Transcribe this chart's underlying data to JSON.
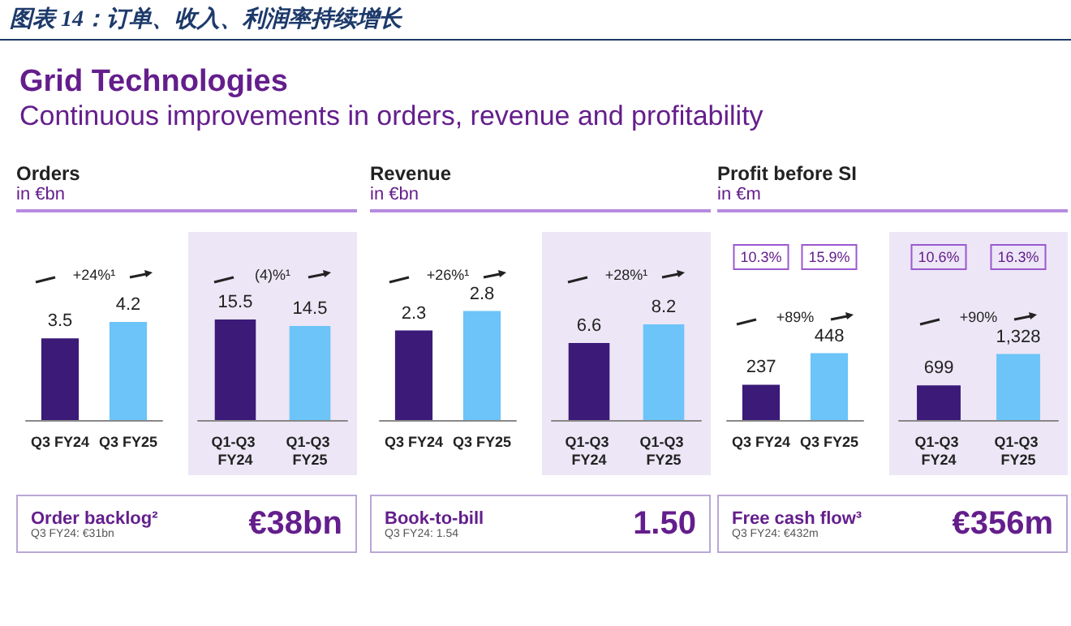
{
  "chart_data": [
    {
      "type": "other",
      "title": "Grid Technologies",
      "subtitle": "Continuous improvements in orders, revenue and profitability",
      "annotations": [
        "图表 14：订单、收入、利润率持续增长"
      ]
    },
    {
      "type": "bar",
      "title": "Orders",
      "subtitle": "in €bn",
      "categories": [
        "Q3 FY24",
        "Q3 FY25"
      ],
      "values": [
        3.5,
        4.2
      ],
      "colors": [
        "#3b1a78",
        "#6cc4f8"
      ],
      "data_labels": true,
      "annotations": [
        "+24%¹"
      ]
    },
    {
      "type": "bar",
      "categories": [
        "Q1-Q3 FY24",
        "Q1-Q3 FY25"
      ],
      "values": [
        15.5,
        14.5
      ],
      "colors": [
        "#3b1a78",
        "#6cc4f8"
      ],
      "data_labels": true,
      "annotations": [
        "(4)%¹"
      ]
    },
    {
      "type": "other",
      "title": "Order backlog²",
      "subtitle": "Q3 FY24: €31bn",
      "annotations": [
        "€38bn"
      ]
    },
    {
      "type": "bar",
      "title": "Revenue",
      "subtitle": "in €bn",
      "categories": [
        "Q3 FY24",
        "Q3 FY25"
      ],
      "values": [
        2.3,
        2.8
      ],
      "colors": [
        "#3b1a78",
        "#6cc4f8"
      ],
      "data_labels": true,
      "annotations": [
        "+26%¹"
      ]
    },
    {
      "type": "bar",
      "categories": [
        "Q1-Q3 FY24",
        "Q1-Q3 FY25"
      ],
      "values": [
        6.6,
        8.2
      ],
      "colors": [
        "#3b1a78",
        "#6cc4f8"
      ],
      "data_labels": true,
      "annotations": [
        "+28%¹"
      ]
    },
    {
      "type": "other",
      "title": "Book-to-bill",
      "subtitle": "Q3 FY24: 1.54",
      "annotations": [
        "1.50"
      ]
    },
    {
      "type": "bar",
      "title": "Profit before SI",
      "subtitle": "in €m",
      "categories": [
        "Q3 FY24",
        "Q3 FY25"
      ],
      "values": [
        237,
        448
      ],
      "colors": [
        "#3b1a78",
        "#6cc4f8"
      ],
      "data_labels": true,
      "annotations": [
        "+89%",
        "10.3%",
        "15.9%"
      ]
    },
    {
      "type": "bar",
      "categories": [
        "Q1-Q3 FY24",
        "Q1-Q3 FY25"
      ],
      "values": [
        699,
        1328
      ],
      "colors": [
        "#3b1a78",
        "#6cc4f8"
      ],
      "value_labels": [
        "699",
        "1,328"
      ],
      "annotations": [
        "+90%",
        "10.6%",
        "16.3%"
      ]
    },
    {
      "type": "other",
      "title": "Free cash flow³",
      "subtitle": "Q3 FY24: €432m",
      "annotations": [
        "€356m"
      ]
    }
  ]
}
